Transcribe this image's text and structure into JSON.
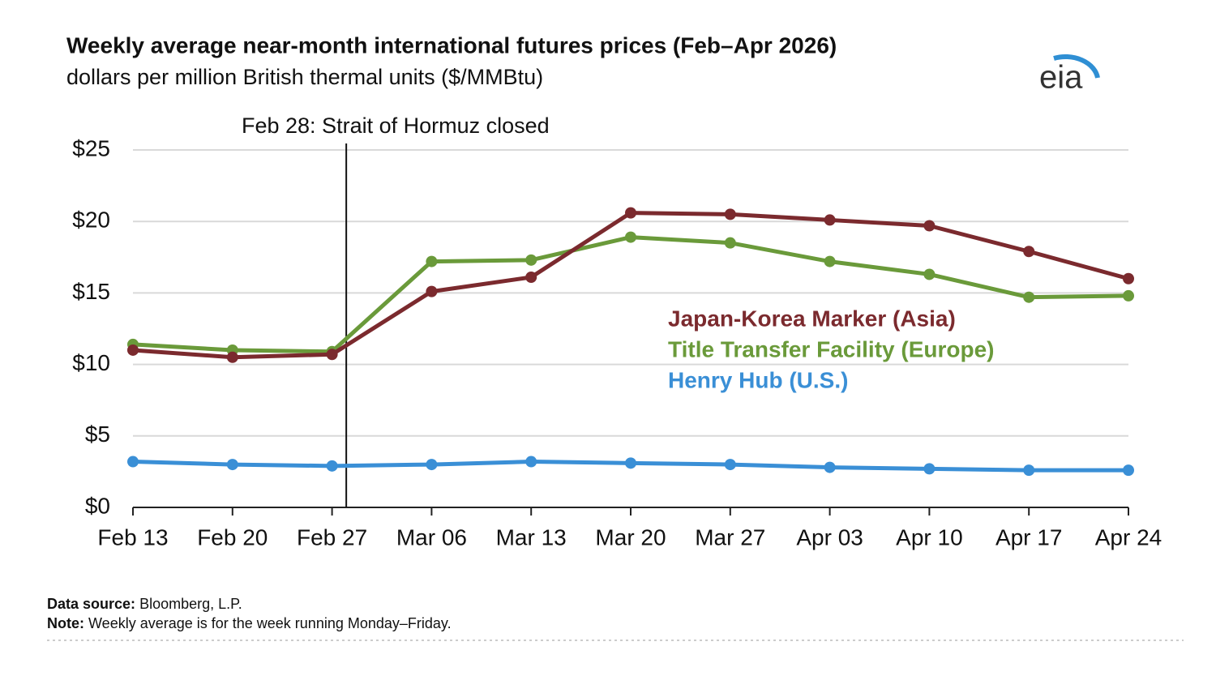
{
  "chart_data": {
    "type": "line",
    "title": "Weekly average near-month international futures prices (Feb–Apr 2026)",
    "subtitle": "dollars per million British thermal units ($/MMBtu)",
    "annotation": "Feb 28: Strait of Hormuz closed",
    "logo": "eia",
    "categories": [
      "Feb 13",
      "Feb 20",
      "Feb 27",
      "Mar 06",
      "Mar 13",
      "Mar 20",
      "Mar 27",
      "Apr 03",
      "Apr 10",
      "Apr 17",
      "Apr 24"
    ],
    "series": [
      {
        "name": "Japan-Korea Marker (Asia)",
        "color": "#7b2a2e",
        "values": [
          11.0,
          10.5,
          10.7,
          15.1,
          16.1,
          20.6,
          20.5,
          20.1,
          19.7,
          17.9,
          16.0
        ]
      },
      {
        "name": "Title Transfer Facility (Europe)",
        "color": "#6a9a3a",
        "values": [
          11.4,
          11.0,
          10.9,
          17.2,
          17.3,
          18.9,
          18.5,
          17.2,
          16.3,
          14.7,
          14.8
        ]
      },
      {
        "name": "Henry Hub (U.S.)",
        "color": "#3a8fd6",
        "values": [
          3.2,
          3.0,
          2.9,
          3.0,
          3.2,
          3.1,
          3.0,
          2.8,
          2.7,
          2.6,
          2.6
        ]
      }
    ],
    "ylim": [
      0,
      25
    ],
    "yticks": [
      {
        "value": 0,
        "label": "$0"
      },
      {
        "value": 5,
        "label": "$5"
      },
      {
        "value": 10,
        "label": "$10"
      },
      {
        "value": 15,
        "label": "$15"
      },
      {
        "value": 20,
        "label": "$20"
      },
      {
        "value": 25,
        "label": "$25"
      }
    ],
    "grid": true,
    "source_label": "Data source:",
    "source": "Bloomberg, L.P.",
    "note_label": "Note:",
    "note": "Weekly average is for the week running Monday–Friday."
  }
}
